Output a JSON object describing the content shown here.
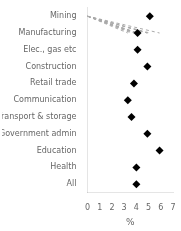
{
  "chart_data": {
    "type": "dot",
    "orientation": "horizontal",
    "categories": [
      "Mining",
      "Manufacturing",
      "Elec., gas etc",
      "Construction",
      "Retail trade",
      "Communication",
      "Transport & storage",
      "Government admin",
      "Education",
      "Health",
      "All"
    ],
    "values": [
      5.1,
      4.1,
      4.1,
      4.9,
      3.8,
      3.3,
      3.6,
      4.9,
      5.9,
      4.0,
      4.0
    ],
    "xlabel": "%",
    "xlim": [
      0,
      7
    ],
    "xticks": [
      0,
      1,
      2,
      3,
      4,
      5,
      6,
      7
    ],
    "color": "#000000",
    "marker": "diamond",
    "line_style": "dashed",
    "grid": false
  }
}
